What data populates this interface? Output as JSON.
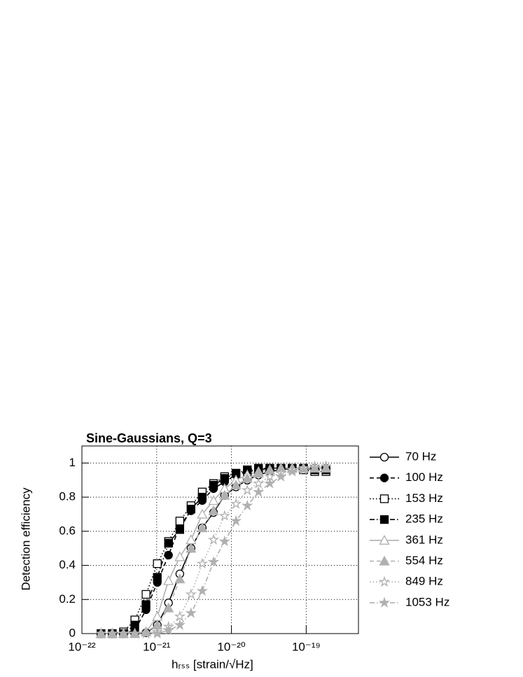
{
  "chart_data": {
    "type": "line",
    "title": "Sine-Gaussians, Q=3",
    "xlabel": "hᵣₛₛ [strain/√Hz]",
    "ylabel": "Detection efficiency",
    "xscale": "log",
    "grid": true,
    "legend": "right",
    "xlim": [
      1e-22,
      5e-19
    ],
    "ylim": [
      0,
      1.1
    ],
    "xticks": [
      {
        "value": 1e-22,
        "label": "10⁻²²"
      },
      {
        "value": 1e-21,
        "label": "10⁻²¹"
      },
      {
        "value": 1e-20,
        "label": "10⁻²⁰"
      },
      {
        "value": 1e-19,
        "label": "10⁻¹⁹"
      }
    ],
    "yticks": [
      0,
      0.2,
      0.4,
      0.6,
      0.8,
      1
    ],
    "x": [
      1.8e-22,
      2.55e-22,
      3.6e-22,
      5.1e-22,
      7.2e-22,
      1.02e-21,
      1.44e-21,
      2.04e-21,
      2.88e-21,
      4.07e-21,
      5.76e-21,
      8.1e-21,
      1.15e-20,
      1.63e-20,
      2.3e-20,
      3.26e-20,
      4.6e-20,
      6.5e-20,
      9.2e-20,
      1.3e-19,
      1.84e-19
    ],
    "series": [
      {
        "name": "70 Hz",
        "color": "#000000",
        "marker": "circle-open",
        "dash": "solid",
        "values": [
          0,
          0,
          0,
          0,
          0.005,
          0.05,
          0.18,
          0.35,
          0.5,
          0.62,
          0.71,
          0.81,
          0.86,
          0.9,
          0.93,
          0.95,
          0.96,
          0.97,
          0.97,
          0.97,
          0.97
        ]
      },
      {
        "name": "100 Hz",
        "color": "#000000",
        "marker": "circle",
        "dash": "dashed",
        "values": [
          0,
          0,
          0,
          0.02,
          0.14,
          0.3,
          0.46,
          0.63,
          0.72,
          0.78,
          0.85,
          0.89,
          0.93,
          0.95,
          0.96,
          0.97,
          0.97,
          0.97,
          0.97,
          0.97,
          0.97
        ]
      },
      {
        "name": "153 Hz",
        "color": "#000000",
        "marker": "square-open",
        "dash": "dotted",
        "values": [
          0,
          0,
          0.01,
          0.08,
          0.23,
          0.41,
          0.54,
          0.66,
          0.75,
          0.83,
          0.88,
          0.92,
          0.94,
          0.95,
          0.96,
          0.97,
          0.97,
          0.97,
          0.96,
          0.95,
          0.95
        ]
      },
      {
        "name": "235 Hz",
        "color": "#000000",
        "marker": "square",
        "dash": "dashdot",
        "values": [
          0,
          0,
          0,
          0.05,
          0.17,
          0.33,
          0.53,
          0.61,
          0.73,
          0.8,
          0.87,
          0.91,
          0.94,
          0.96,
          0.97,
          0.97,
          0.97,
          0.97,
          0.97,
          0.96,
          0.96
        ]
      },
      {
        "name": "361 Hz",
        "color": "#b0b0b0",
        "marker": "triangle-open",
        "dash": "solid",
        "values": [
          0,
          0,
          0,
          0,
          0.01,
          0.1,
          0.31,
          0.45,
          0.55,
          0.7,
          0.78,
          0.85,
          0.9,
          0.93,
          0.95,
          0.96,
          0.97,
          0.97,
          0.97,
          0.97,
          0.97
        ]
      },
      {
        "name": "554 Hz",
        "color": "#b0b0b0",
        "marker": "triangle",
        "dash": "dashed",
        "values": [
          0,
          0,
          0,
          0,
          0.01,
          0.05,
          0.15,
          0.32,
          0.5,
          0.62,
          0.72,
          0.81,
          0.87,
          0.91,
          0.94,
          0.96,
          0.97,
          0.97,
          0.97,
          0.97,
          0.97
        ]
      },
      {
        "name": "849 Hz",
        "color": "#b0b0b0",
        "marker": "star-open",
        "dash": "dotted",
        "values": [
          0,
          0,
          0,
          0,
          0,
          0.01,
          0.04,
          0.1,
          0.23,
          0.41,
          0.55,
          0.69,
          0.76,
          0.84,
          0.88,
          0.92,
          0.94,
          0.96,
          0.97,
          0.98,
          0.98
        ]
      },
      {
        "name": "1053 Hz",
        "color": "#b0b0b0",
        "marker": "star",
        "dash": "dashdot",
        "values": [
          0,
          0,
          0,
          0,
          0,
          0,
          0.02,
          0.05,
          0.12,
          0.25,
          0.42,
          0.54,
          0.66,
          0.75,
          0.83,
          0.88,
          0.92,
          0.95,
          0.96,
          0.97,
          0.98
        ]
      }
    ]
  }
}
